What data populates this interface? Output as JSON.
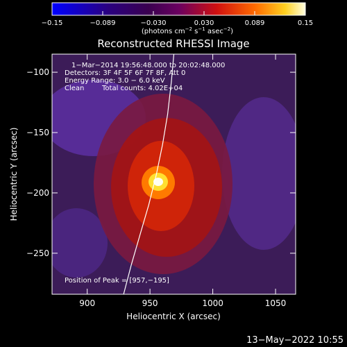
{
  "chart_data": {
    "type": "heatmap",
    "title": "Reconstructed RHESSI Image",
    "xlabel": "Heliocentric X (arcsec)",
    "ylabel": "Heliocentric Y (arcsec)",
    "xlim": [
      872,
      1066
    ],
    "ylim": [
      -284,
      -85
    ],
    "xticks": [
      900,
      950,
      1000,
      1050
    ],
    "yticks": [
      -100,
      -150,
      -200,
      -250
    ],
    "colorbar": {
      "min": -0.15,
      "max": 0.15,
      "ticks": [
        "−0.15",
        "−0.089",
        "−0.030",
        "0.030",
        "0.089",
        "0.15"
      ],
      "unit_main": "(photons cm",
      "unit_exp1": "−2",
      "unit_mid": " s",
      "unit_exp2": "−1",
      "unit_mid2": " asec",
      "unit_exp3": "−2",
      "unit_end": ")"
    },
    "annotations": {
      "line1": "1−Mar−2014 19:56:48.000 to 20:02:48.000",
      "line2": "Detectors: 3F 4F 5F 6F 7F 8F, Att 0",
      "line3": "Energy Range: 3.0 − 6.0 keV",
      "line4a": "Clean",
      "line4b": "Total counts: 4.02E+04",
      "peak": "Position of Peak = [957,−195]"
    },
    "peak": [
      957,
      -195
    ],
    "limb_curve": [
      [
        929,
        -284
      ],
      [
        935,
        -260
      ],
      [
        942,
        -235
      ],
      [
        949,
        -210
      ],
      [
        955,
        -185
      ],
      [
        960,
        -160
      ],
      [
        964,
        -135
      ],
      [
        967,
        -108
      ],
      [
        969,
        -85
      ]
    ],
    "footer": "13−May−2022 10:55"
  }
}
